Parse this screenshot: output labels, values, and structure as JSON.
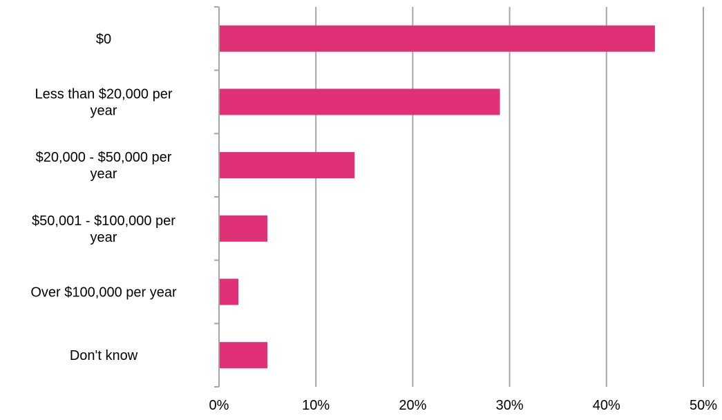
{
  "chart_data": {
    "type": "bar",
    "orientation": "horizontal",
    "categories": [
      [
        "$0"
      ],
      [
        "Less than $20,000 per",
        "year"
      ],
      [
        "$20,000 - $50,000 per",
        "year"
      ],
      [
        "$50,001 - $100,000 per",
        "year"
      ],
      [
        "Over $100,000 per year"
      ],
      [
        "Don't know"
      ]
    ],
    "values": [
      45,
      29,
      14,
      5,
      2,
      5
    ],
    "xlim": [
      0,
      50
    ],
    "xticks": [
      0,
      10,
      20,
      30,
      40,
      50
    ],
    "xtick_labels": [
      "0%",
      "10%",
      "20%",
      "30%",
      "40%",
      "50%"
    ],
    "grid": "vertical",
    "legend": "none",
    "bar_color": "#E03178",
    "grid_color": "#A6A6A6",
    "title": "",
    "xlabel": "",
    "ylabel": ""
  }
}
